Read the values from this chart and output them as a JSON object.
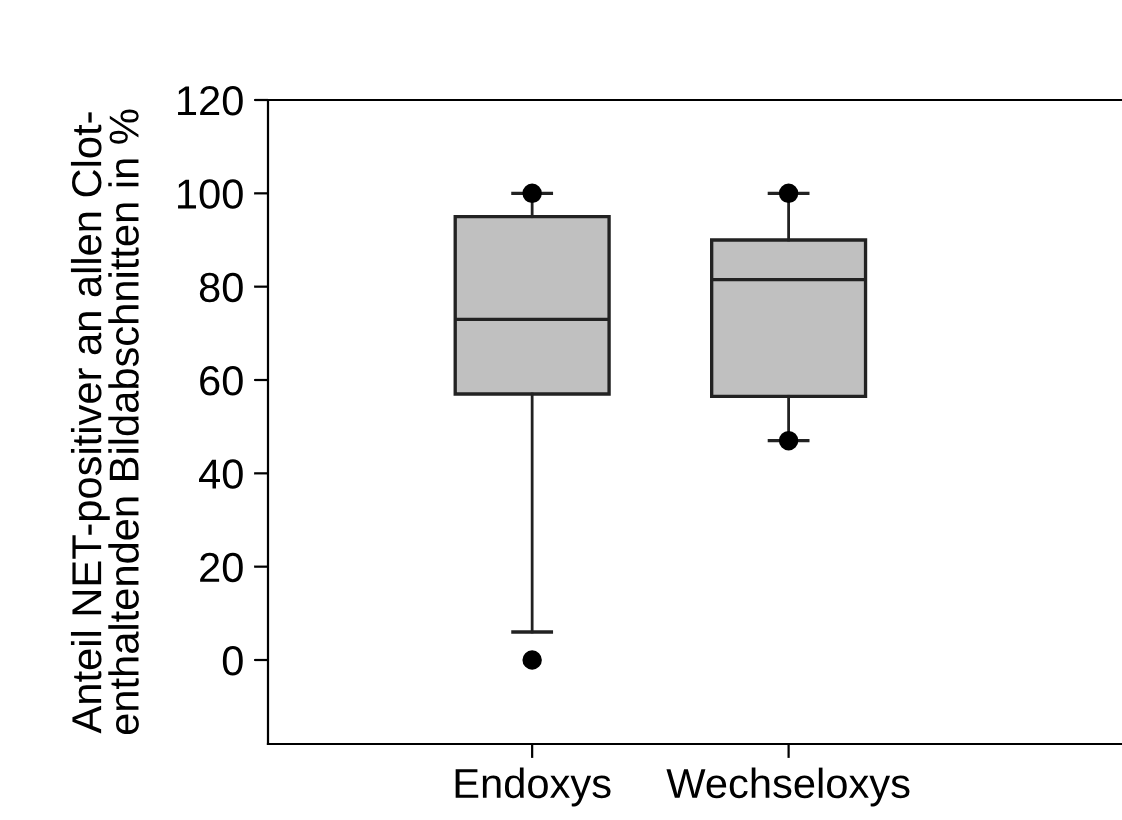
{
  "chart_data": {
    "type": "box",
    "ylabel": "Anteil NET-positiver an allen Clot-\nenthaltenden Bildabschnitten in %",
    "categories": [
      "Endoxys",
      "Wechseloxys"
    ],
    "ylim": [
      -18,
      120
    ],
    "yticks": [
      0,
      20,
      40,
      60,
      80,
      100,
      120
    ],
    "grid": false,
    "boxes": [
      {
        "low": 6,
        "q1": 57,
        "median": 73,
        "q3": 95,
        "high": 100,
        "outliers": [
          100,
          0
        ]
      },
      {
        "low": 47,
        "q1": 56.5,
        "median": 81.5,
        "q3": 90,
        "high": 100,
        "outliers": [
          100,
          47
        ]
      }
    ],
    "color": "#c0c0c0"
  }
}
